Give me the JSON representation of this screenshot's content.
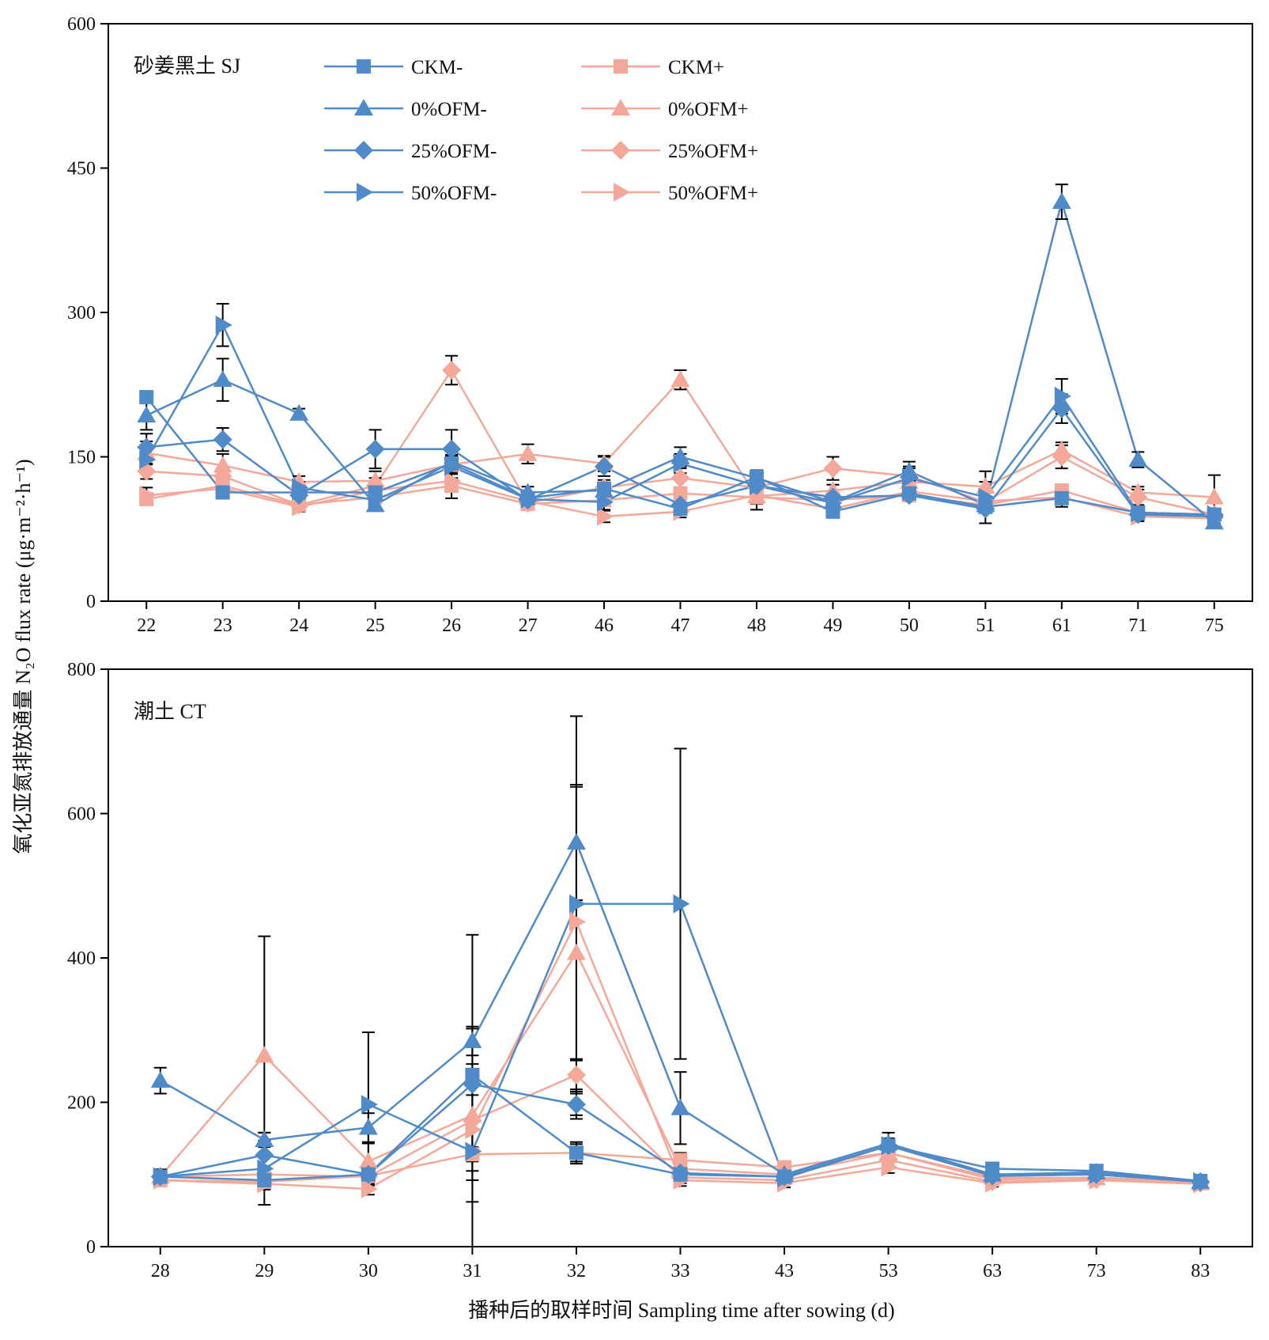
{
  "figure": {
    "y_axis_label": "氧化亚氮排放通量 N₂O flux rate (μg·m⁻²·h⁻¹)",
    "x_axis_label": "播种后的取样时间 Sampling time after sowing (d)",
    "colors": {
      "minus": "#4F8AC9",
      "plus": "#F4A89A",
      "error_bar": "#000000"
    }
  },
  "legend": [
    {
      "label": "CKM-",
      "marker": "square",
      "color": "#4F8AC9"
    },
    {
      "label": "0%OFM-",
      "marker": "triangle-up",
      "color": "#4F8AC9"
    },
    {
      "label": "25%OFM-",
      "marker": "diamond",
      "color": "#4F8AC9"
    },
    {
      "label": "50%OFM-",
      "marker": "triangle-right",
      "color": "#4F8AC9"
    },
    {
      "label": "CKM+",
      "marker": "square",
      "color": "#F4A89A"
    },
    {
      "label": "0%OFM+",
      "marker": "triangle-up",
      "color": "#F4A89A"
    },
    {
      "label": "25%OFM+",
      "marker": "diamond",
      "color": "#F4A89A"
    },
    {
      "label": "50%OFM+",
      "marker": "triangle-right",
      "color": "#F4A89A"
    }
  ],
  "chart_data": [
    {
      "type": "line",
      "panel_label": "砂姜黑土 SJ",
      "categories": [
        "22",
        "23",
        "24",
        "25",
        "26",
        "27",
        "46",
        "47",
        "48",
        "49",
        "50",
        "51",
        "61",
        "71",
        "75"
      ],
      "ylim": [
        0,
        600
      ],
      "yticks": [
        0,
        150,
        300,
        450,
        600
      ],
      "series": [
        {
          "name": "CKM-",
          "color": "#4F8AC9",
          "marker": "square",
          "values": [
            212,
            113,
            113,
            113,
            143,
            107,
            117,
            96,
            129,
            93,
            112,
            98,
            107,
            92,
            90
          ],
          "errors": [
            5,
            4,
            4,
            5,
            8,
            4,
            5,
            4,
            5,
            3,
            4,
            3,
            6,
            4,
            4
          ]
        },
        {
          "name": "0%OFM-",
          "color": "#4F8AC9",
          "marker": "triangle-up",
          "values": [
            193,
            230,
            195,
            100,
            145,
            113,
            115,
            150,
            128,
            103,
            135,
            100,
            415,
            147,
            82
          ],
          "errors": [
            15,
            22,
            5,
            5,
            12,
            6,
            6,
            10,
            8,
            5,
            10,
            5,
            18,
            8,
            4
          ]
        },
        {
          "name": "25%OFM-",
          "color": "#4F8AC9",
          "marker": "diamond",
          "values": [
            160,
            168,
            110,
            158,
            158,
            105,
            140,
            100,
            120,
            108,
            110,
            96,
            200,
            90,
            88
          ],
          "errors": [
            14,
            12,
            6,
            20,
            20,
            5,
            10,
            6,
            10,
            5,
            6,
            4,
            15,
            5,
            4
          ]
        },
        {
          "name": "50%OFM-",
          "color": "#4F8AC9",
          "marker": "triangle-right",
          "values": [
            147,
            287,
            118,
            105,
            140,
            106,
            103,
            143,
            120,
            102,
            128,
            108,
            213,
            92,
            90
          ],
          "errors": [
            12,
            22,
            6,
            8,
            12,
            5,
            8,
            10,
            8,
            6,
            12,
            27,
            18,
            5,
            4
          ]
        },
        {
          "name": "CKM+",
          "color": "#F4A89A",
          "marker": "square",
          "values": [
            106,
            120,
            100,
            108,
            120,
            101,
            105,
            112,
            108,
            105,
            110,
            100,
            115,
            92,
            90
          ],
          "errors": [
            5,
            5,
            4,
            5,
            6,
            5,
            6,
            6,
            6,
            4,
            5,
            4,
            6,
            5,
            4
          ]
        },
        {
          "name": "0%OFM+",
          "color": "#F4A89A",
          "marker": "triangle-up",
          "values": [
            154,
            141,
            124,
            125,
            142,
            153,
            143,
            230,
            109,
            115,
            124,
            119,
            157,
            113,
            108
          ],
          "errors": [
            12,
            12,
            6,
            10,
            10,
            10,
            8,
            10,
            8,
            6,
            8,
            5,
            8,
            6,
            23
          ]
        },
        {
          "name": "25%OFM+",
          "color": "#F4A89A",
          "marker": "diamond",
          "values": [
            135,
            130,
            100,
            120,
            240,
            102,
            118,
            128,
            118,
            138,
            130,
            103,
            150,
            108,
            90
          ],
          "errors": [
            8,
            8,
            5,
            8,
            15,
            5,
            8,
            10,
            10,
            12,
            8,
            5,
            12,
            8,
            5
          ]
        },
        {
          "name": "50%OFM+",
          "color": "#F4A89A",
          "marker": "triangle-right",
          "values": [
            110,
            117,
            98,
            115,
            125,
            104,
            88,
            93,
            110,
            96,
            114,
            104,
            108,
            88,
            86
          ],
          "errors": [
            8,
            8,
            5,
            8,
            18,
            6,
            6,
            6,
            15,
            6,
            6,
            5,
            10,
            5,
            5
          ]
        }
      ]
    },
    {
      "type": "line",
      "panel_label": "潮土 CT",
      "categories": [
        "28",
        "29",
        "30",
        "31",
        "32",
        "33",
        "43",
        "53",
        "63",
        "73",
        "83"
      ],
      "ylim": [
        0,
        800
      ],
      "yticks": [
        0,
        200,
        400,
        600,
        800
      ],
      "series": [
        {
          "name": "CKM-",
          "color": "#4F8AC9",
          "marker": "square",
          "values": [
            97,
            92,
            100,
            238,
            130,
            100,
            97,
            140,
            108,
            105,
            91
          ],
          "errors": [
            10,
            8,
            10,
            15,
            15,
            8,
            8,
            8,
            6,
            5,
            5
          ]
        },
        {
          "name": "0%OFM-",
          "color": "#4F8AC9",
          "marker": "triangle-up",
          "values": [
            230,
            148,
            165,
            285,
            560,
            192,
            100,
            143,
            100,
            103,
            90
          ],
          "errors": [
            18,
            10,
            20,
            20,
            80,
            50,
            8,
            15,
            5,
            5,
            5
          ]
        },
        {
          "name": "25%OFM-",
          "color": "#4F8AC9",
          "marker": "diamond",
          "values": [
            97,
            127,
            100,
            225,
            197,
            102,
            97,
            140,
            98,
            100,
            90
          ],
          "errors": [
            10,
            20,
            15,
            15,
            15,
            10,
            8,
            10,
            6,
            5,
            4
          ]
        },
        {
          "name": "50%OFM-",
          "color": "#4F8AC9",
          "marker": "triangle-right",
          "values": [
            97,
            108,
            197,
            132,
            475,
            475,
            95,
            140,
            100,
            100,
            90
          ],
          "errors": [
            8,
            50,
            100,
            300,
            260,
            215,
            8,
            10,
            6,
            5,
            4
          ]
        },
        {
          "name": "CKM+",
          "color": "#F4A89A",
          "marker": "square",
          "values": [
            92,
            90,
            98,
            128,
            130,
            120,
            110,
            130,
            93,
            96,
            89
          ],
          "errors": [
            8,
            8,
            8,
            10,
            12,
            10,
            8,
            8,
            5,
            5,
            4
          ]
        },
        {
          "name": "0%OFM+",
          "color": "#F4A89A",
          "marker": "triangle-up",
          "values": [
            97,
            265,
            118,
            182,
            407,
            108,
            100,
            130,
            96,
            95,
            88
          ],
          "errors": [
            8,
            165,
            25,
            120,
            230,
            15,
            8,
            10,
            5,
            5,
            4
          ]
        },
        {
          "name": "25%OFM+",
          "color": "#F4A89A",
          "marker": "diamond",
          "values": [
            97,
            100,
            97,
            175,
            238,
            96,
            92,
            120,
            90,
            93,
            88
          ],
          "errors": [
            8,
            10,
            10,
            70,
            20,
            8,
            6,
            8,
            5,
            5,
            4
          ]
        },
        {
          "name": "50%OFM+",
          "color": "#F4A89A",
          "marker": "triangle-right",
          "values": [
            92,
            87,
            80,
            162,
            450,
            92,
            88,
            110,
            88,
            92,
            87
          ],
          "errors": [
            6,
            8,
            8,
            70,
            190,
            8,
            6,
            8,
            5,
            5,
            4
          ]
        }
      ]
    }
  ]
}
